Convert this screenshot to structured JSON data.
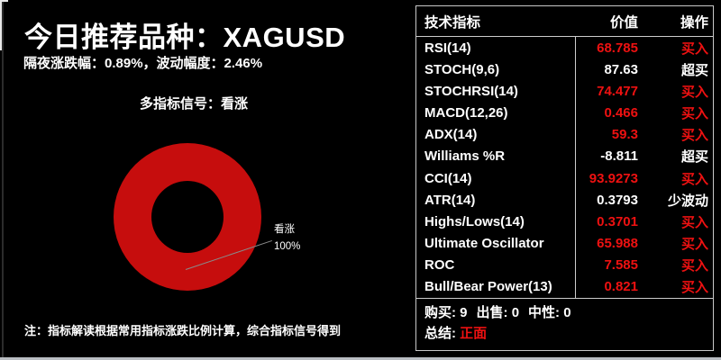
{
  "header": {
    "title": "今日推荐品种：XAGUSD",
    "subtitle": "隔夜涨跌幅：0.89%，波动幅度：2.46%"
  },
  "chart": {
    "title": "多指标信号：看涨",
    "label_name": "看涨",
    "label_value": "100%"
  },
  "chart_data": {
    "type": "pie",
    "donut": true,
    "title": "多指标信号：看涨",
    "categories": [
      "看涨"
    ],
    "values": [
      100
    ],
    "unit": "%",
    "colors": [
      "#c60d0d"
    ],
    "annotations": [
      "看涨 100%"
    ],
    "legend_position": "callout-right"
  },
  "footnote": "注：指标解读根据常用指标涨跌比例计算，综合指标信号得到",
  "table": {
    "headers": {
      "indicator": "技术指标",
      "value": "价值",
      "action": "操作"
    },
    "rows": [
      {
        "name": "RSI(14)",
        "value": "68.785",
        "action": "买入",
        "tone": "tone-red"
      },
      {
        "name": "STOCH(9,6)",
        "value": "87.63",
        "action": "超买",
        "tone": "tone-white"
      },
      {
        "name": "STOCHRSI(14)",
        "value": "74.477",
        "action": "买入",
        "tone": "tone-red"
      },
      {
        "name": "MACD(12,26)",
        "value": "0.466",
        "action": "买入",
        "tone": "tone-red"
      },
      {
        "name": "ADX(14)",
        "value": "59.3",
        "action": "买入",
        "tone": "tone-red"
      },
      {
        "name": "Williams %R",
        "value": "-8.811",
        "action": "超买",
        "tone": "tone-white"
      },
      {
        "name": "CCI(14)",
        "value": "93.9273",
        "action": "买入",
        "tone": "tone-red"
      },
      {
        "name": "ATR(14)",
        "value": "0.3793",
        "action": "少波动",
        "tone": "tone-white"
      },
      {
        "name": "Highs/Lows(14)",
        "value": "0.3701",
        "action": "买入",
        "tone": "tone-red"
      },
      {
        "name": "Ultimate Oscillator",
        "value": "65.988",
        "action": "买入",
        "tone": "tone-red"
      },
      {
        "name": "ROC",
        "value": "7.585",
        "action": "买入",
        "tone": "tone-red"
      },
      {
        "name": "Bull/Bear Power(13)",
        "value": "0.821",
        "action": "买入",
        "tone": "tone-red"
      }
    ],
    "summary": {
      "buy_label": "购买:",
      "buy_count": "9",
      "sell_label": "出售:",
      "sell_count": "0",
      "neutral_label": "中性:",
      "neutral_count": "0",
      "verdict_label": "总结:",
      "verdict": "正面"
    }
  },
  "colors": {
    "background": "#000000",
    "accent_red": "#ee1111",
    "donut_red": "#c60d0d",
    "table_border": "#c8c8c8"
  }
}
